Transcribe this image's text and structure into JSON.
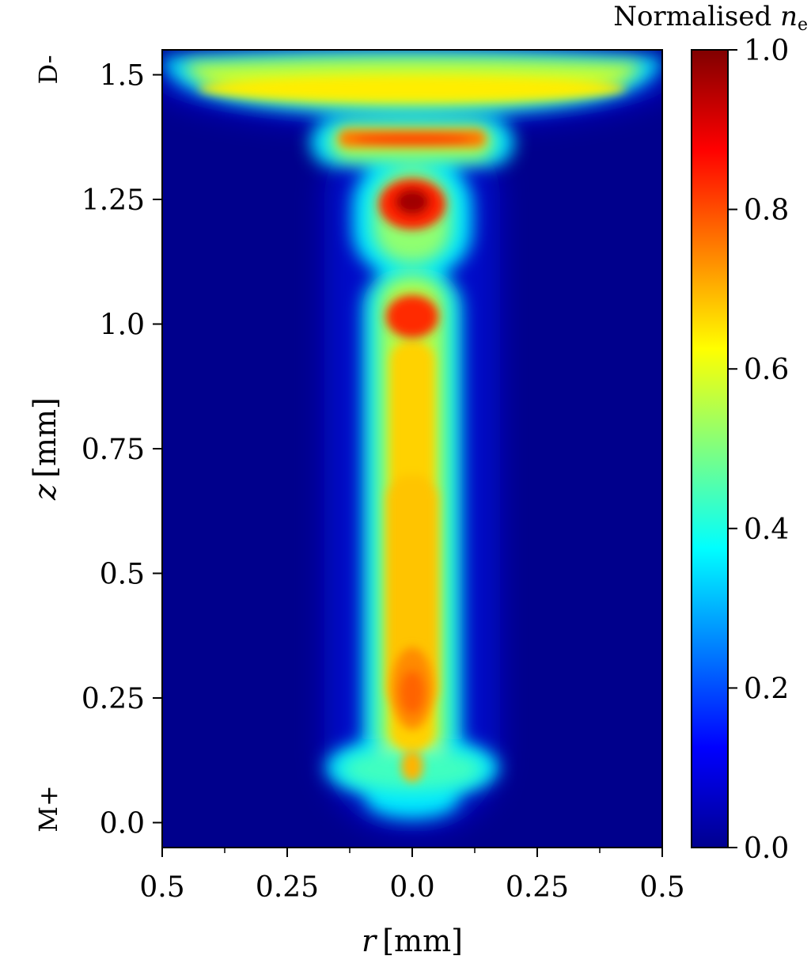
{
  "chart_data": {
    "type": "heatmap",
    "colormap": "jet",
    "xlabel_var": "r",
    "xlabel_unit": "[mm]",
    "ylabel_var": "z",
    "ylabel_unit": "[mm]",
    "x_ticks": [
      {
        "label": "0.5"
      },
      {
        "label": "0.25"
      },
      {
        "label": "0.0"
      },
      {
        "label": "0.25"
      },
      {
        "label": "0.5"
      }
    ],
    "y_ticks": [
      {
        "value": 0.0,
        "label": "0.0"
      },
      {
        "value": 0.25,
        "label": "0.25"
      },
      {
        "value": 0.5,
        "label": "0.5"
      },
      {
        "value": 0.75,
        "label": "0.75"
      },
      {
        "value": 1.0,
        "label": "1.0"
      },
      {
        "value": 1.25,
        "label": "1.25"
      },
      {
        "value": 1.5,
        "label": "1.5"
      }
    ],
    "xlim": [
      -0.5,
      0.5
    ],
    "ylim": [
      -0.05,
      1.55
    ],
    "electrode_top_label": "D-",
    "electrode_bottom_label": "M+",
    "colorbar": {
      "title_text": "Normalised ",
      "title_var": "n",
      "title_sub": "e",
      "range": [
        0.0,
        1.0
      ],
      "ticks": [
        {
          "value": 0.0,
          "label": "0.0"
        },
        {
          "value": 0.2,
          "label": "0.2"
        },
        {
          "value": 0.4,
          "label": "0.4"
        },
        {
          "value": 0.6,
          "label": "0.6"
        },
        {
          "value": 0.8,
          "label": "0.8"
        },
        {
          "value": 1.0,
          "label": "1.0"
        }
      ]
    },
    "features": [
      {
        "name": "cathode-layer",
        "r": 0.0,
        "z": 1.47,
        "peak": 0.62,
        "radial_extent": 0.5
      },
      {
        "name": "negative-glow-band",
        "r": 0.0,
        "z": 1.37,
        "peak": 0.78,
        "radial_extent": 0.19
      },
      {
        "name": "striation-upper",
        "r": 0.0,
        "z": 1.24,
        "peak": 1.0
      },
      {
        "name": "striation-lower",
        "r": 0.0,
        "z": 1.01,
        "peak": 0.9
      },
      {
        "name": "positive-column",
        "r": 0.0,
        "z_range": [
          0.05,
          0.95
        ],
        "peak": 0.72
      },
      {
        "name": "column-bulge",
        "r": 0.0,
        "z": 0.26,
        "peak": 0.8
      },
      {
        "name": "anode-spot",
        "r": 0.0,
        "z": 0.12,
        "peak": 0.45,
        "radial_extent": 0.17
      }
    ]
  }
}
